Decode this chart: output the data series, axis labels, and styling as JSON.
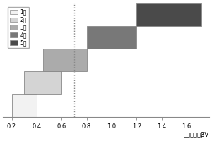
{
  "levels": [
    "1级",
    "2级",
    "3级",
    "4级",
    "5级"
  ],
  "colors": [
    "#f2f2f2",
    "#d4d4d4",
    "#ababab",
    "#787878",
    "#4a4a4a"
  ],
  "edge_color": "#888888",
  "bars": [
    {
      "xmin": 0.2,
      "xmax": 0.4,
      "row": 0
    },
    {
      "xmin": 0.3,
      "xmax": 0.6,
      "row": 1
    },
    {
      "xmin": 0.45,
      "xmax": 0.8,
      "row": 2
    },
    {
      "xmin": 0.8,
      "xmax": 1.2,
      "row": 3
    },
    {
      "xmin": 1.2,
      "xmax": 1.72,
      "row": 4
    }
  ],
  "bar_height": 1.0,
  "dashed_x": 0.7,
  "xlabel": "非线性参数βV",
  "xlim": [
    0.13,
    1.78
  ],
  "ylim": [
    0,
    5
  ],
  "xticks": [
    0.2,
    0.4,
    0.6,
    0.8,
    1.0,
    1.2,
    1.4,
    1.6
  ],
  "legend_labels": [
    "1级",
    "2级",
    "3级",
    "4级",
    "5级"
  ],
  "background_color": "#ffffff"
}
